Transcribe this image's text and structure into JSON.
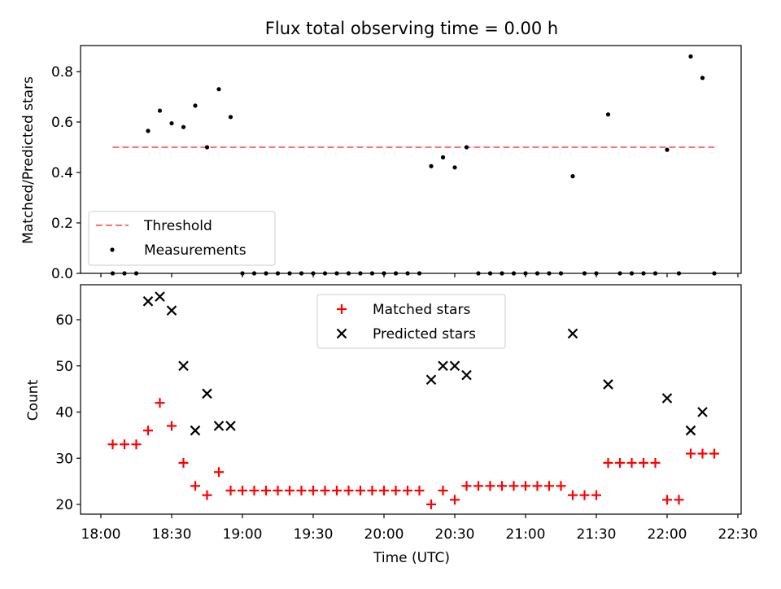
{
  "chart_data": [
    {
      "type": "scatter",
      "title": "Flux total observing time = 0.00 h",
      "ylabel": "Matched/Predicted stars",
      "xlabel": "",
      "ylim": [
        0.0,
        0.9
      ],
      "yticks": [
        "0.0",
        "0.2",
        "0.4",
        "0.6",
        "0.8"
      ],
      "legend_position": "lower-left",
      "threshold": {
        "name": "Threshold",
        "value": 0.5,
        "x": [
          "18:05",
          "22:20"
        ],
        "color": "#ff7070"
      },
      "series": [
        {
          "name": "Measurements",
          "color": "#000000",
          "marker": "dot",
          "x": [
            "18:05",
            "18:10",
            "18:15",
            "18:20",
            "18:25",
            "18:30",
            "18:35",
            "18:40",
            "18:45",
            "18:50",
            "18:55",
            "19:00",
            "19:05",
            "19:10",
            "19:15",
            "19:20",
            "19:25",
            "19:30",
            "19:35",
            "19:40",
            "19:45",
            "19:50",
            "19:55",
            "20:00",
            "20:05",
            "20:10",
            "20:15",
            "20:20",
            "20:25",
            "20:30",
            "20:35",
            "20:40",
            "20:45",
            "20:50",
            "20:55",
            "21:00",
            "21:05",
            "21:10",
            "21:15",
            "21:20",
            "21:25",
            "21:30",
            "21:35",
            "21:40",
            "21:45",
            "21:50",
            "21:55",
            "22:00",
            "22:05",
            "22:10",
            "22:15",
            "22:20"
          ],
          "y": [
            0,
            0,
            0,
            0.565,
            0.645,
            0.595,
            0.58,
            0.665,
            0.5,
            0.73,
            0.62,
            0,
            0,
            0,
            0,
            0,
            0,
            0,
            0,
            0,
            0,
            0,
            0,
            0,
            0,
            0,
            0,
            0.425,
            0.46,
            0.42,
            0.5,
            0,
            0,
            0,
            0,
            0,
            0,
            0,
            0,
            0.385,
            0,
            0,
            0.63,
            0,
            0,
            0,
            0,
            0.49,
            0,
            0.86,
            0.775,
            0
          ]
        }
      ]
    },
    {
      "type": "scatter",
      "title": "",
      "ylabel": "Count",
      "xlabel": "Time (UTC)",
      "ylim": [
        18,
        67
      ],
      "yticks": [
        "20",
        "30",
        "40",
        "50",
        "60"
      ],
      "xticks": [
        "18:00",
        "18:30",
        "19:00",
        "19:30",
        "20:00",
        "20:30",
        "21:00",
        "21:30",
        "22:00",
        "22:30"
      ],
      "legend_position": "upper-center",
      "series": [
        {
          "name": "Matched stars",
          "color": "#ff0000",
          "marker": "plus",
          "x": [
            "18:05",
            "18:10",
            "18:15",
            "18:20",
            "18:25",
            "18:30",
            "18:35",
            "18:40",
            "18:45",
            "18:50",
            "18:55",
            "19:00",
            "19:05",
            "19:10",
            "19:15",
            "19:20",
            "19:25",
            "19:30",
            "19:35",
            "19:40",
            "19:45",
            "19:50",
            "19:55",
            "20:00",
            "20:05",
            "20:10",
            "20:15",
            "20:20",
            "20:25",
            "20:30",
            "20:35",
            "20:40",
            "20:45",
            "20:50",
            "20:55",
            "21:00",
            "21:05",
            "21:10",
            "21:15",
            "21:20",
            "21:25",
            "21:30",
            "21:35",
            "21:40",
            "21:45",
            "21:50",
            "21:55",
            "22:00",
            "22:05",
            "22:10",
            "22:15",
            "22:20"
          ],
          "y": [
            33,
            33,
            33,
            36,
            42,
            37,
            29,
            24,
            22,
            27,
            23,
            23,
            23,
            23,
            23,
            23,
            23,
            23,
            23,
            23,
            23,
            23,
            23,
            23,
            23,
            23,
            23,
            20,
            23,
            21,
            24,
            24,
            24,
            24,
            24,
            24,
            24,
            24,
            24,
            22,
            22,
            22,
            29,
            29,
            29,
            29,
            29,
            21,
            21,
            31,
            31,
            31
          ]
        },
        {
          "name": "Predicted stars",
          "color": "#000000",
          "marker": "x",
          "x": [
            "18:20",
            "18:25",
            "18:30",
            "18:35",
            "18:40",
            "18:45",
            "18:50",
            "18:55",
            "20:20",
            "20:25",
            "20:30",
            "20:35",
            "21:20",
            "21:35",
            "22:00",
            "22:10",
            "22:15"
          ],
          "y": [
            64,
            65,
            62,
            50,
            36,
            44,
            37,
            37,
            47,
            50,
            50,
            48,
            57,
            46,
            43,
            36,
            40
          ]
        }
      ]
    }
  ]
}
